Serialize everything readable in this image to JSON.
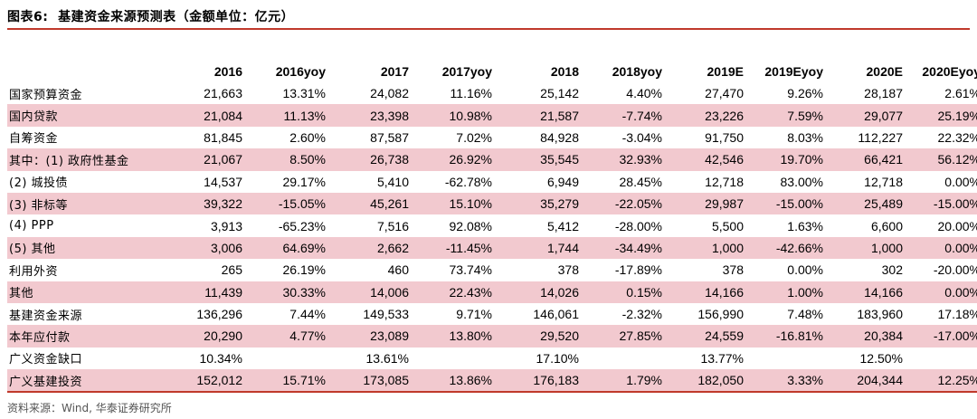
{
  "title": "图表6:  基建资金来源预测表（金额单位：亿元）",
  "columns": [
    "",
    "2016",
    "2016yoy",
    "2017",
    "2017yoy",
    "2018",
    "2018yoy",
    "2019E",
    "2019Eyoy",
    "2020E",
    "2020Eyoy"
  ],
  "rows": [
    {
      "label": "国家预算资金",
      "cells": [
        "21,663",
        "13.31%",
        "24,082",
        "11.16%",
        "25,142",
        "4.40%",
        "27,470",
        "9.26%",
        "28,187",
        "2.61%"
      ],
      "shaded": false
    },
    {
      "label": "国内贷款",
      "cells": [
        "21,084",
        "11.13%",
        "23,398",
        "10.98%",
        "21,587",
        "-7.74%",
        "23,226",
        "7.59%",
        "29,077",
        "25.19%"
      ],
      "shaded": true
    },
    {
      "label": "自筹资金",
      "cells": [
        "81,845",
        "2.60%",
        "87,587",
        "7.02%",
        "84,928",
        "-3.04%",
        "91,750",
        "8.03%",
        "112,227",
        "22.32%"
      ],
      "shaded": false
    },
    {
      "label": "其中：(1) 政府性基金",
      "cells": [
        "21,067",
        "8.50%",
        "26,738",
        "26.92%",
        "35,545",
        "32.93%",
        "42,546",
        "19.70%",
        "66,421",
        "56.12%"
      ],
      "shaded": true
    },
    {
      "label": " (2) 城投债",
      "cells": [
        "14,537",
        "29.17%",
        "5,410",
        "-62.78%",
        "6,949",
        "28.45%",
        "12,718",
        "83.00%",
        "12,718",
        "0.00%"
      ],
      "shaded": false
    },
    {
      "label": " (3) 非标等",
      "cells": [
        "39,322",
        "-15.05%",
        "45,261",
        "15.10%",
        "35,279",
        "-22.05%",
        "29,987",
        "-15.00%",
        "25,489",
        "-15.00%"
      ],
      "shaded": true
    },
    {
      "label": " (4) PPP",
      "cells": [
        "3,913",
        "-65.23%",
        "7,516",
        "92.08%",
        "5,412",
        "-28.00%",
        "5,500",
        "1.63%",
        "6,600",
        "20.00%"
      ],
      "shaded": false
    },
    {
      "label": " (5) 其他",
      "cells": [
        "3,006",
        "64.69%",
        "2,662",
        "-11.45%",
        "1,744",
        "-34.49%",
        "1,000",
        "-42.66%",
        "1,000",
        "0.00%"
      ],
      "shaded": true
    },
    {
      "label": "利用外资",
      "cells": [
        "265",
        "26.19%",
        "460",
        "73.74%",
        "378",
        "-17.89%",
        "378",
        "0.00%",
        "302",
        "-20.00%"
      ],
      "shaded": false
    },
    {
      "label": "其他",
      "cells": [
        "11,439",
        "30.33%",
        "14,006",
        "22.43%",
        "14,026",
        "0.15%",
        "14,166",
        "1.00%",
        "14,166",
        "0.00%"
      ],
      "shaded": true
    },
    {
      "label": "基建资金来源",
      "cells": [
        "136,296",
        "7.44%",
        "149,533",
        "9.71%",
        "146,061",
        "-2.32%",
        "156,990",
        "7.48%",
        "183,960",
        "17.18%"
      ],
      "shaded": false
    },
    {
      "label": "本年应付款",
      "cells": [
        "20,290",
        "4.77%",
        "23,089",
        "13.80%",
        "29,520",
        "27.85%",
        "24,559",
        "-16.81%",
        "20,384",
        "-17.00%"
      ],
      "shaded": true
    },
    {
      "label": "广义资金缺口",
      "cells": [
        "10.34%",
        "",
        "13.61%",
        "",
        "17.10%",
        "",
        "13.77%",
        "",
        "12.50%",
        ""
      ],
      "shaded": false
    },
    {
      "label": "广义基建投资",
      "cells": [
        "152,012",
        "15.71%",
        "173,085",
        "13.86%",
        "176,183",
        "1.79%",
        "182,050",
        "3.33%",
        "204,344",
        "12.25%"
      ],
      "shaded": true
    }
  ],
  "source": "资料来源：Wind, 华泰证券研究所",
  "colors": {
    "accent": "#c0392b",
    "shade": "#f2c9cf"
  }
}
